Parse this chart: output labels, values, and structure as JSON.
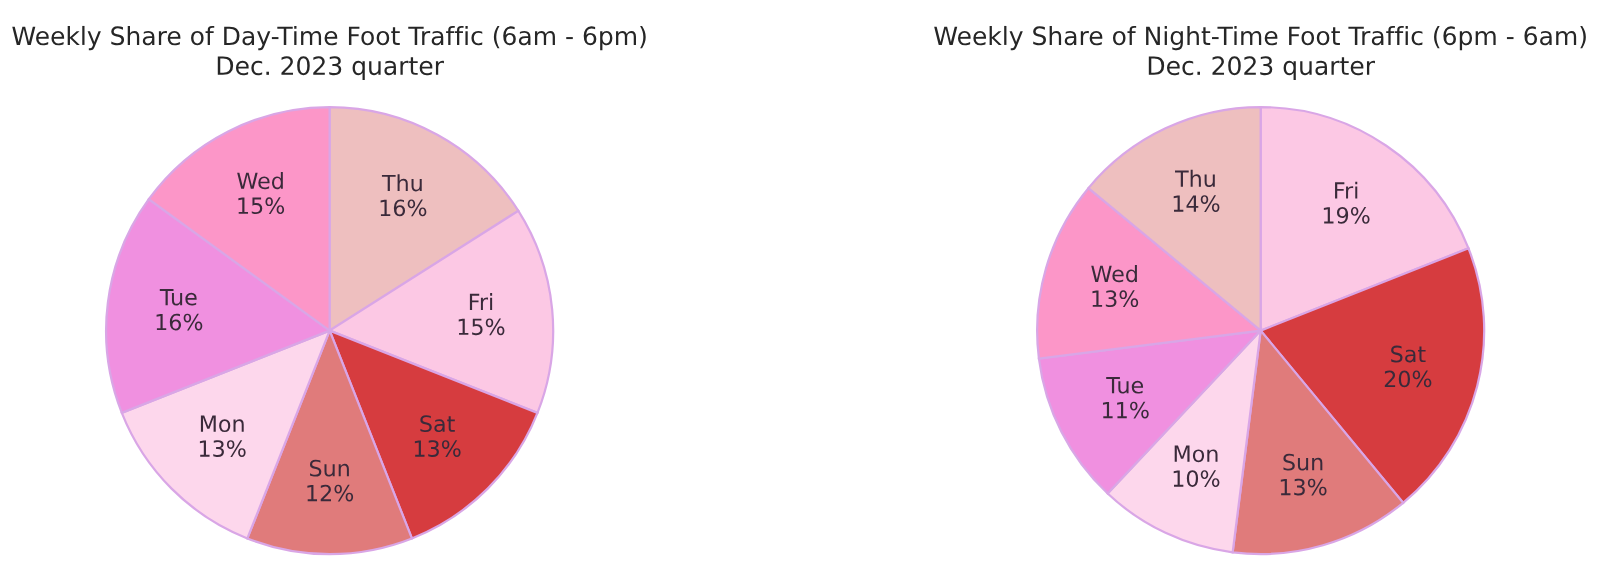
{
  "chart_data": [
    {
      "type": "pie",
      "title": "Weekly Share of Day-Time Foot Traffic (6am - 6pm)\nDec. 2023 quarter",
      "categories": [
        "Thu",
        "Fri",
        "Sat",
        "Sun",
        "Mon",
        "Tue",
        "Wed"
      ],
      "values": [
        16,
        15,
        13,
        12,
        13,
        16,
        15
      ],
      "value_labels": [
        "16%",
        "15%",
        "13%",
        "12%",
        "13%",
        "16%",
        "15%"
      ],
      "colors": [
        "#eebfbf",
        "#fcc8e4",
        "#d63c3f",
        "#e07b7b",
        "#fdd7ec",
        "#f090e0",
        "#fc96c8"
      ]
    },
    {
      "type": "pie",
      "title": "Weekly Share of Night-Time Foot Traffic (6pm - 6am)\nDec. 2023 quarter",
      "categories": [
        "Fri",
        "Sat",
        "Sun",
        "Mon",
        "Tue",
        "Wed",
        "Thu"
      ],
      "values": [
        19,
        20,
        13,
        10,
        11,
        13,
        14
      ],
      "value_labels": [
        "19%",
        "20%",
        "13%",
        "10%",
        "11%",
        "13%",
        "14%"
      ],
      "colors": [
        "#fcc8e4",
        "#d63c3f",
        "#e07b7b",
        "#fdd7ec",
        "#f090e0",
        "#fc96c8",
        "#eebfbf"
      ]
    }
  ]
}
